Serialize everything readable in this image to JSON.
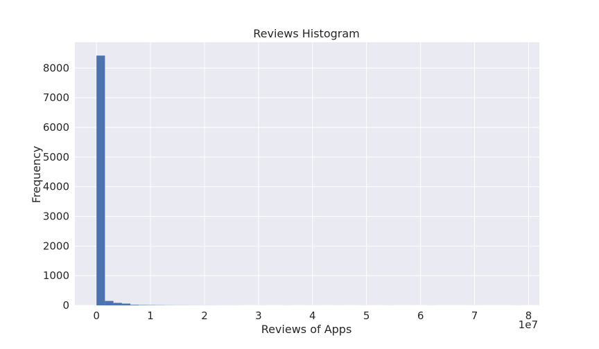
{
  "chart_data": {
    "type": "bar",
    "title": "Reviews Histogram",
    "xlabel": "Reviews of Apps",
    "ylabel": "Frequency",
    "x_offset_label": "1e7",
    "x_ticks": [
      0,
      1,
      2,
      3,
      4,
      5,
      6,
      7,
      8
    ],
    "y_ticks": [
      0,
      1000,
      2000,
      3000,
      4000,
      5000,
      6000,
      7000,
      8000
    ],
    "xlim": [
      -0.4,
      8.2
    ],
    "ylim": [
      0,
      8870
    ],
    "bin_width": 0.157,
    "series": [
      {
        "values": [
          {
            "x0": 0.0,
            "y": 8420
          },
          {
            "x0": 0.157,
            "y": 150
          },
          {
            "x0": 0.314,
            "y": 85
          },
          {
            "x0": 0.471,
            "y": 60
          },
          {
            "x0": 0.628,
            "y": 20
          },
          {
            "x0": 0.785,
            "y": 12
          },
          {
            "x0": 0.942,
            "y": 10
          },
          {
            "x0": 1.099,
            "y": 7
          },
          {
            "x0": 1.256,
            "y": 5
          },
          {
            "x0": 1.413,
            "y": 3
          },
          {
            "x0": 1.57,
            "y": 3
          },
          {
            "x0": 1.727,
            "y": 2
          },
          {
            "x0": 1.884,
            "y": 2
          },
          {
            "x0": 2.041,
            "y": 2
          },
          {
            "x0": 2.198,
            "y": 1
          },
          {
            "x0": 2.355,
            "y": 1
          },
          {
            "x0": 2.512,
            "y": 1
          },
          {
            "x0": 2.983,
            "y": 1
          },
          {
            "x0": 3.454,
            "y": 1
          },
          {
            "x0": 3.925,
            "y": 1
          },
          {
            "x0": 4.396,
            "y": 1
          },
          {
            "x0": 4.867,
            "y": 1
          },
          {
            "x0": 5.338,
            "y": 1
          },
          {
            "x0": 6.123,
            "y": 1
          },
          {
            "x0": 6.908,
            "y": 1
          },
          {
            "x0": 7.693,
            "y": 1
          }
        ]
      }
    ],
    "grid": true,
    "colors": {
      "bar": "#4c72b0",
      "background": "#eaeaf2",
      "grid": "#ffffff"
    }
  }
}
